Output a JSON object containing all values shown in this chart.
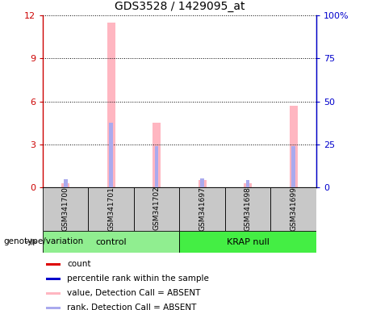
{
  "title": "GDS3528 / 1429095_at",
  "samples": [
    "GSM341700",
    "GSM341701",
    "GSM341702",
    "GSM341697",
    "GSM341698",
    "GSM341699"
  ],
  "pink_bars": [
    0.28,
    11.5,
    4.5,
    0.5,
    0.28,
    5.7
  ],
  "blue_bars_pct": [
    5.0,
    37.5,
    24.0,
    5.5,
    4.5,
    24.0
  ],
  "red_bars": [
    0.18,
    0.08,
    0.08,
    0.18,
    0.15,
    0.08
  ],
  "ylim_left": [
    0,
    12
  ],
  "ylim_right": [
    0,
    100
  ],
  "yticks_left": [
    0,
    3,
    6,
    9,
    12
  ],
  "ytick_labels_left": [
    "0",
    "3",
    "6",
    "9",
    "12"
  ],
  "yticks_right": [
    0,
    25,
    50,
    75,
    100
  ],
  "ytick_labels_right": [
    "0",
    "25",
    "50",
    "75",
    "100%"
  ],
  "pink_color": "#ffb6c1",
  "blue_color": "#aaaaee",
  "red_color": "#dd0000",
  "blue_dark_color": "#0000cc",
  "left_axis_color": "#cc0000",
  "right_axis_color": "#0000cc",
  "legend_labels": [
    "count",
    "percentile rank within the sample",
    "value, Detection Call = ABSENT",
    "rank, Detection Call = ABSENT"
  ],
  "legend_colors": [
    "#dd0000",
    "#0000cc",
    "#ffb6c1",
    "#aaaaee"
  ],
  "group_label": "genotype/variation",
  "control_label": "control",
  "krap_label": "KRAP null",
  "control_color": "#90ee90",
  "krap_color": "#44ee44",
  "sample_box_color": "#c8c8c8"
}
